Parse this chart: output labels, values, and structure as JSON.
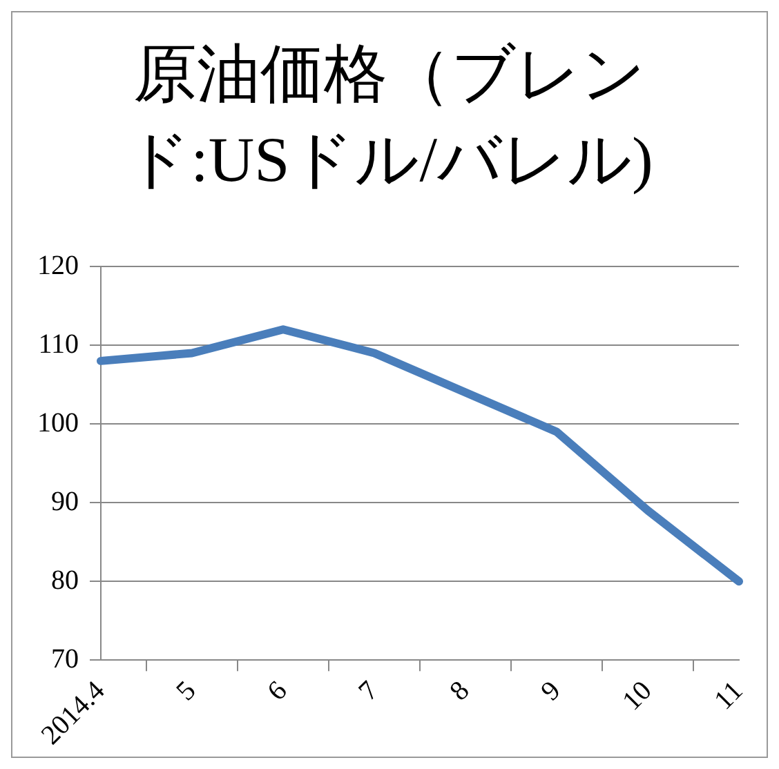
{
  "chart_data": {
    "type": "line",
    "title": "原油価格（ブレンド:USドル/バレル)",
    "categories": [
      "2014.4",
      "5",
      "6",
      "7",
      "8",
      "9",
      "10",
      "11"
    ],
    "series": [
      {
        "color": "#4a7ebb",
        "values": [
          108,
          109,
          112,
          109,
          104,
          99,
          89,
          80
        ]
      }
    ],
    "ylim": [
      70,
      120
    ],
    "yticks": [
      70,
      80,
      90,
      100,
      110,
      120
    ],
    "grid": "y",
    "legend": false,
    "marker": "none",
    "line_style": "solid"
  }
}
